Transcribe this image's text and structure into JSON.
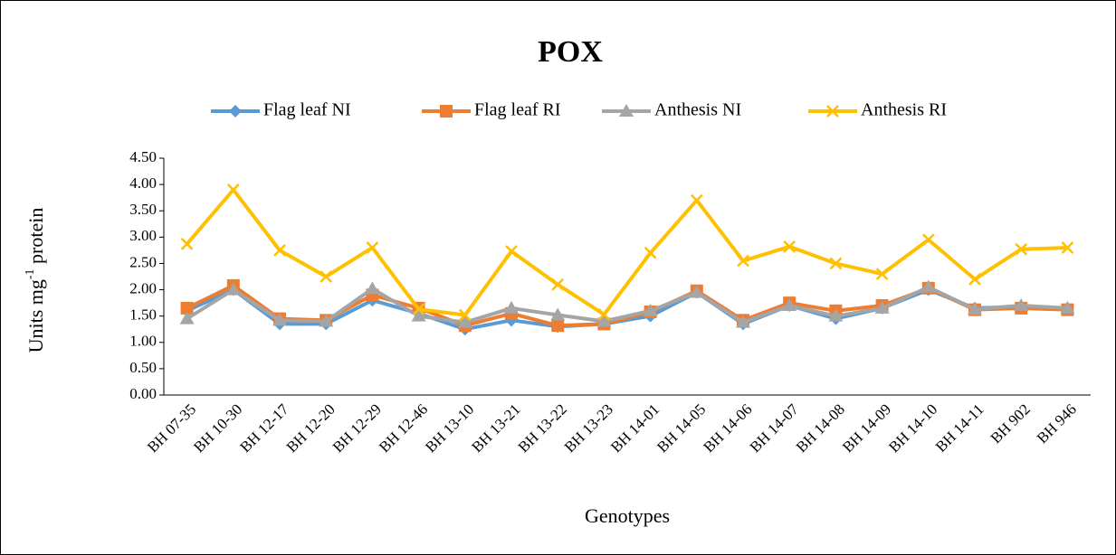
{
  "chart_data": {
    "type": "line",
    "title": "POX",
    "x_label": "Genotypes",
    "y_label_parts": [
      "Units mg",
      "-1",
      " protein"
    ],
    "categories": [
      "BH 07-35",
      "BH 10-30",
      "BH 12-17",
      "BH 12-20",
      "BH 12-29",
      "BH 12-46",
      "BH 13-10",
      "BH 13-21",
      "BH 13-22",
      "BH 13-23",
      "BH 14-01",
      "BH 14-05",
      "BH 14-06",
      "BH 14-07",
      "BH 14-08",
      "BH 14-09",
      "BH 14-10",
      "BH 14-11",
      "BH 902",
      "BH 946"
    ],
    "series": [
      {
        "name": "Flag leaf NI",
        "color": "#5b9bd5",
        "marker": "diamond",
        "values": [
          1.6,
          2.0,
          1.35,
          1.35,
          1.8,
          1.55,
          1.25,
          1.42,
          1.3,
          1.35,
          1.5,
          1.95,
          1.35,
          1.7,
          1.45,
          1.65,
          2.0,
          1.65,
          1.68,
          1.65
        ]
      },
      {
        "name": "Flag leaf RI",
        "color": "#ed7d31",
        "marker": "square",
        "values": [
          1.65,
          2.08,
          1.45,
          1.42,
          1.9,
          1.65,
          1.32,
          1.55,
          1.32,
          1.35,
          1.58,
          1.98,
          1.42,
          1.75,
          1.6,
          1.7,
          2.03,
          1.62,
          1.65,
          1.62
        ]
      },
      {
        "name": "Anthesis NI",
        "color": "#a5a5a5",
        "marker": "triangle",
        "values": [
          1.45,
          2.0,
          1.42,
          1.4,
          2.02,
          1.5,
          1.38,
          1.65,
          1.52,
          1.4,
          1.6,
          1.95,
          1.38,
          1.7,
          1.5,
          1.65,
          2.05,
          1.63,
          1.7,
          1.65
        ]
      },
      {
        "name": "Anthesis RI",
        "color": "#ffc000",
        "marker": "x",
        "values": [
          2.87,
          3.9,
          2.75,
          2.25,
          2.8,
          1.63,
          1.52,
          2.73,
          2.1,
          1.53,
          2.7,
          3.7,
          2.55,
          2.82,
          2.5,
          2.3,
          2.95,
          2.2,
          2.77,
          2.8
        ]
      }
    ],
    "ylim": [
      0,
      4.5
    ],
    "yticks": [
      {
        "value": 0,
        "label": "0.00"
      },
      {
        "value": 0.5,
        "label": "0.50"
      },
      {
        "value": 1,
        "label": "1.00"
      },
      {
        "value": 1.5,
        "label": "1.50"
      },
      {
        "value": 2,
        "label": "2.00"
      },
      {
        "value": 2.5,
        "label": "2.50"
      },
      {
        "value": 3,
        "label": "3.00"
      },
      {
        "value": 3.5,
        "label": "3.50"
      },
      {
        "value": 4,
        "label": "4.00"
      },
      {
        "value": 4.5,
        "label": "4.50"
      }
    ],
    "grid": false,
    "legend": "top"
  }
}
